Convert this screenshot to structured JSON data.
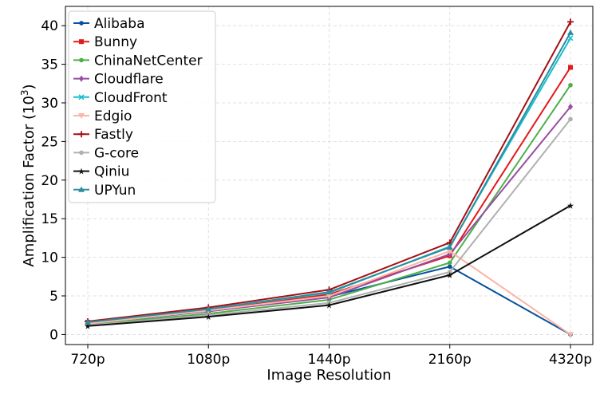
{
  "chart_data": {
    "type": "line",
    "title": "",
    "xlabel": "Image Resolution",
    "ylabel_main": "Amplification Factor (10",
    "ylabel_exp": "3",
    "ylabel_close": ")",
    "categories": [
      "720p",
      "1080p",
      "1440p",
      "2160p",
      "4320p"
    ],
    "ylim": [
      -1.3,
      42.5
    ],
    "yticks": [
      0,
      5,
      10,
      15,
      20,
      25,
      30,
      35,
      40
    ],
    "grid": true,
    "legend_position": "top-left",
    "series": [
      {
        "name": "Alibaba",
        "color": "#08519c",
        "marker": "circle",
        "values": [
          1.4,
          3.0,
          4.9,
          8.8,
          0.0
        ]
      },
      {
        "name": "Bunny",
        "color": "#e41a1c",
        "marker": "square",
        "values": [
          1.6,
          3.2,
          5.2,
          10.2,
          34.6
        ]
      },
      {
        "name": "ChinaNetCenter",
        "color": "#4daf4a",
        "marker": "circle",
        "values": [
          1.3,
          2.7,
          4.5,
          9.3,
          32.3
        ]
      },
      {
        "name": "Cloudflare",
        "color": "#984ea3",
        "marker": "diamond",
        "values": [
          1.5,
          3.0,
          4.8,
          10.4,
          29.5
        ]
      },
      {
        "name": "CloudFront",
        "color": "#17becf",
        "marker": "x",
        "values": [
          1.5,
          3.3,
          5.4,
          11.4,
          38.4
        ]
      },
      {
        "name": "Edgio",
        "color": "#fbb4a5",
        "marker": "triangle-down",
        "values": [
          1.4,
          3.1,
          5.0,
          10.8,
          0.0
        ]
      },
      {
        "name": "Fastly",
        "color": "#a50f15",
        "marker": "plus",
        "values": [
          1.7,
          3.5,
          5.8,
          11.9,
          40.5
        ]
      },
      {
        "name": "G-core",
        "color": "#b0b0b0",
        "marker": "circle",
        "values": [
          1.2,
          2.5,
          4.1,
          8.1,
          27.9
        ]
      },
      {
        "name": "Qiniu",
        "color": "#111111",
        "marker": "star",
        "values": [
          1.1,
          2.3,
          3.8,
          7.7,
          16.7
        ]
      },
      {
        "name": "UPYun",
        "color": "#2c8d9c",
        "marker": "triangle-up",
        "values": [
          1.6,
          3.3,
          5.5,
          11.3,
          39.1
        ]
      }
    ]
  }
}
